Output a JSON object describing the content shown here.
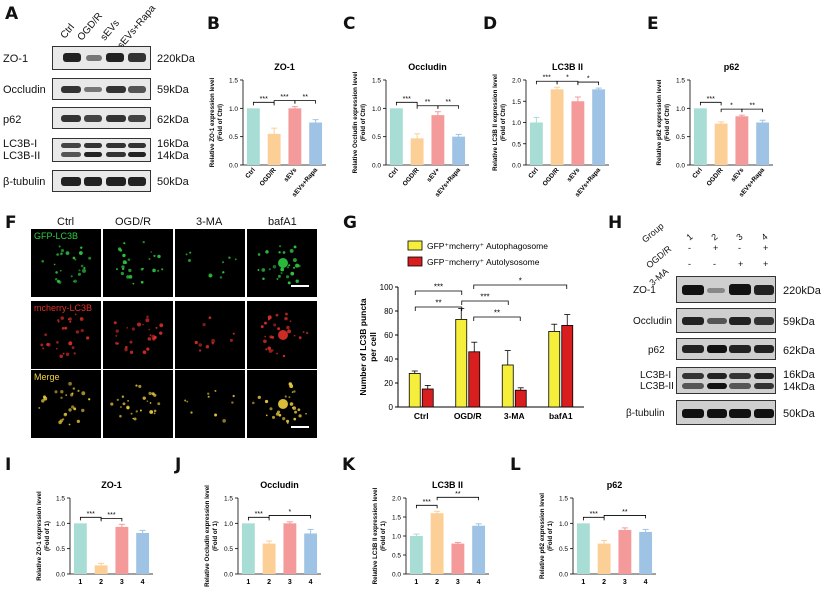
{
  "panel_letters": [
    "A",
    "B",
    "C",
    "D",
    "E",
    "F",
    "G",
    "H",
    "I",
    "J",
    "K",
    "L"
  ],
  "panelA": {
    "groups": [
      "Ctrl",
      "OGD/R",
      "sEVs",
      "sEVs+Rapa"
    ],
    "rows": [
      {
        "protein": "ZO-1",
        "kda": "220kDa"
      },
      {
        "protein": "Occludin",
        "kda": "59kDa"
      },
      {
        "protein": "p62",
        "kda": "62kDa"
      },
      {
        "protein": "LC3B-I\nLC3B-II",
        "protein1": "LC3B-I",
        "protein2": "LC3B-II",
        "kda1": "16kDa",
        "kda2": "14kDa"
      },
      {
        "protein": "β-tubulin",
        "kda": "50kDa"
      }
    ]
  },
  "panelH": {
    "group_label": "Group",
    "group_numbers": [
      "1",
      "2",
      "3",
      "4"
    ],
    "ogdr_label": "OGD/R",
    "ogdr_signs": [
      "-",
      "+",
      "-",
      "+"
    ],
    "ma_label": "3-MA",
    "ma_signs": [
      "-",
      "-",
      "+",
      "+"
    ],
    "rows": [
      {
        "protein": "ZO-1",
        "kda": "220kDa"
      },
      {
        "protein": "Occludin",
        "kda": "59kDa"
      },
      {
        "protein": "p62",
        "kda": "62kDa"
      },
      {
        "protein1": "LC3B-I",
        "protein2": "LC3B-II",
        "kda1": "16kDa",
        "kda2": "14kDa"
      },
      {
        "protein": "β-tubulin",
        "kda": "50kDa"
      }
    ]
  },
  "panelF": {
    "columns": [
      "Ctrl",
      "OGD/R",
      "3-MA",
      "bafA1"
    ],
    "rows": [
      "GFP-LC3B",
      "mcherry-LC3B",
      "Merge"
    ],
    "row_colors": [
      "#2ecc40",
      "#e0302a",
      "#f0d040"
    ]
  },
  "colors": {
    "ctrl": "#a8ddd6",
    "ogdr": "#fccf96",
    "sevs": "#f49a9a",
    "rapa": "#9fc3e4",
    "autophagosome": "#f5ee3a",
    "autolysosome": "#d81e1e"
  },
  "chart_data": [
    {
      "panel": "B",
      "type": "bar",
      "title": "ZO-1",
      "ylabel": "Relative ZO-1 expression level\n(Fold of Ctrl)",
      "categories": [
        "Ctrl",
        "OGD/R",
        "sEVs",
        "sEVs+Rapa"
      ],
      "values": [
        1.0,
        0.55,
        1.0,
        0.75
      ],
      "errors": [
        0.0,
        0.1,
        0.03,
        0.05
      ],
      "ylim": [
        0,
        1.5
      ],
      "yticks": [
        "0.0",
        "0.5",
        "1.0",
        "1.5"
      ],
      "sig": [
        {
          "from": 0,
          "to": 1,
          "label": "***"
        },
        {
          "from": 1,
          "to": 2,
          "label": "***"
        },
        {
          "from": 2,
          "to": 3,
          "label": "**"
        }
      ]
    },
    {
      "panel": "C",
      "type": "bar",
      "title": "Occludin",
      "ylabel": "Relative Occludin expression level\n(Fold of Ctrl)",
      "categories": [
        "Ctrl",
        "OGD/R",
        "sEV+",
        "sEVs+Rapa"
      ],
      "values": [
        1.0,
        0.47,
        0.88,
        0.5
      ],
      "errors": [
        0.0,
        0.08,
        0.06,
        0.04
      ],
      "ylim": [
        0,
        1.5
      ],
      "yticks": [
        "0.0",
        "0.5",
        "1.0",
        "1.5"
      ],
      "sig": [
        {
          "from": 0,
          "to": 1,
          "label": "***"
        },
        {
          "from": 1,
          "to": 2,
          "label": "**"
        },
        {
          "from": 2,
          "to": 3,
          "label": "**"
        }
      ]
    },
    {
      "panel": "D",
      "type": "bar",
      "title": "LC3B II",
      "ylabel": "Relative LC3B II expression level\n(Fold of Ctrl)",
      "categories": [
        "Ctrl",
        "OGD/R",
        "sEVs",
        "sEVs+Rapa"
      ],
      "values": [
        1.0,
        1.78,
        1.5,
        1.78
      ],
      "errors": [
        0.12,
        0.05,
        0.1,
        0.03
      ],
      "ylim": [
        0,
        2.0
      ],
      "yticks": [
        "0.0",
        "0.5",
        "1.0",
        "1.5",
        "2.0"
      ],
      "sig": [
        {
          "from": 0,
          "to": 1,
          "label": "***"
        },
        {
          "from": 1,
          "to": 2,
          "label": "*"
        },
        {
          "from": 2,
          "to": 3,
          "label": "*"
        }
      ]
    },
    {
      "panel": "E",
      "type": "bar",
      "title": "p62",
      "ylabel": "Relative p62 expression level\n(Fold of Ctrl)",
      "categories": [
        "Ctrl",
        "OGD/R",
        "sEVs",
        "sEVs+Rapa"
      ],
      "values": [
        1.0,
        0.73,
        0.86,
        0.75
      ],
      "errors": [
        0.0,
        0.03,
        0.02,
        0.04
      ],
      "ylim": [
        0,
        1.5
      ],
      "yticks": [
        "0.0",
        "0.5",
        "1.0",
        "1.5"
      ],
      "sig": [
        {
          "from": 0,
          "to": 1,
          "label": "***"
        },
        {
          "from": 1,
          "to": 2,
          "label": "*"
        },
        {
          "from": 2,
          "to": 3,
          "label": "**"
        }
      ]
    },
    {
      "panel": "G",
      "type": "bar",
      "ylabel": "Number of LC3B puncta\nper cell",
      "categories": [
        "Ctrl",
        "OGD/R",
        "3-MA",
        "bafA1"
      ],
      "series": [
        {
          "name": "GFP⁺mcherry⁺ Autophagosome",
          "values": [
            28,
            73,
            35,
            63
          ],
          "errors": [
            2,
            9,
            12,
            6
          ]
        },
        {
          "name": "GFP⁻mcherry⁺ Autolysosome",
          "values": [
            15,
            46,
            14,
            68
          ],
          "errors": [
            3,
            8,
            2,
            9
          ]
        }
      ],
      "ylim": [
        0,
        100
      ],
      "yticks": [
        "0",
        "20",
        "40",
        "60",
        "80",
        "100"
      ],
      "sig": [
        "***",
        "**",
        "***",
        "**",
        "*"
      ]
    },
    {
      "panel": "I",
      "type": "bar",
      "title": "ZO-1",
      "ylabel": "Relative ZO-1 expression level\n(Fold of 1)",
      "categories": [
        "1",
        "2",
        "3",
        "4"
      ],
      "values": [
        1.0,
        0.17,
        0.93,
        0.81
      ],
      "errors": [
        0.0,
        0.04,
        0.05,
        0.05
      ],
      "ylim": [
        0,
        1.5
      ],
      "yticks": [
        "0.0",
        "0.5",
        "1.0",
        "1.5"
      ],
      "sig": [
        {
          "from": 0,
          "to": 1,
          "label": "***"
        },
        {
          "from": 1,
          "to": 2,
          "label": "***"
        }
      ]
    },
    {
      "panel": "J",
      "type": "bar",
      "title": "Occludin",
      "ylabel": "Relative Occludin expression level\n(Fold of 1)",
      "categories": [
        "1",
        "2",
        "3",
        "4"
      ],
      "values": [
        1.0,
        0.6,
        1.0,
        0.8
      ],
      "errors": [
        0.0,
        0.05,
        0.03,
        0.08
      ],
      "ylim": [
        0,
        1.5
      ],
      "yticks": [
        "0.0",
        "0.5",
        "1.0",
        "1.5"
      ],
      "sig": [
        {
          "from": 0,
          "to": 1,
          "label": "***"
        },
        {
          "from": 1,
          "to": 3,
          "label": "*"
        }
      ]
    },
    {
      "panel": "K",
      "type": "bar",
      "title": "LC3B II",
      "ylabel": "Relative LC3B II expression level\n(Fold of 1)",
      "categories": [
        "1",
        "2",
        "3",
        "4"
      ],
      "values": [
        1.0,
        1.6,
        0.8,
        1.27
      ],
      "errors": [
        0.05,
        0.05,
        0.03,
        0.05
      ],
      "ylim": [
        0,
        2.0
      ],
      "yticks": [
        "0.0",
        "0.5",
        "1.0",
        "1.5",
        "2.0"
      ],
      "sig": [
        {
          "from": 0,
          "to": 1,
          "label": "***"
        },
        {
          "from": 1,
          "to": 3,
          "label": "**"
        }
      ]
    },
    {
      "panel": "L",
      "type": "bar",
      "title": "p62",
      "ylabel": "Relative p62 expression level\n(Fold of 1)",
      "categories": [
        "1",
        "2",
        "3",
        "4"
      ],
      "values": [
        1.0,
        0.6,
        0.87,
        0.83
      ],
      "errors": [
        0.0,
        0.06,
        0.04,
        0.05
      ],
      "ylim": [
        0,
        1.5
      ],
      "yticks": [
        "0.0",
        "0.5",
        "1.0",
        "1.5"
      ],
      "sig": [
        {
          "from": 0,
          "to": 1,
          "label": "***"
        },
        {
          "from": 1,
          "to": 3,
          "label": "**"
        }
      ]
    }
  ]
}
